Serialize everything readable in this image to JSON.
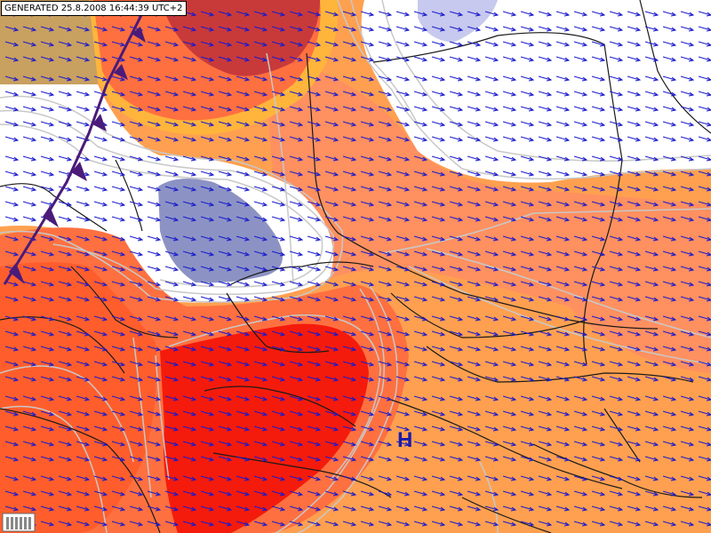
{
  "stamp": {
    "text": "GENERATED 25.8.2008 16:44:39 UTC+2"
  },
  "pressure_centers": [
    {
      "label": "H",
      "kind": "high"
    }
  ],
  "field": {
    "palette": {
      "ocean": "#c8a060",
      "white": "#ffffff",
      "cold_blue": "#8c93c4",
      "light_blue": "#c7c9ee",
      "salmon": "#ff9060",
      "light_orange": "#ffa050",
      "orange_red": "#ff5e2c",
      "red": "#f51b0c",
      "dark_red": "#c83a3a",
      "gold": "#ffb53c",
      "isoline": "#c8c8c8",
      "border": "#1a1a1a",
      "wind_arrow": "#1a1acc",
      "front": "#4a1b7a",
      "high_label": "#1a1aaa"
    }
  },
  "front": {
    "type": "cold-front"
  },
  "wind": {
    "direction": "ESE",
    "symbol": "arrow"
  },
  "legend": {
    "icon": "bars-icon"
  }
}
